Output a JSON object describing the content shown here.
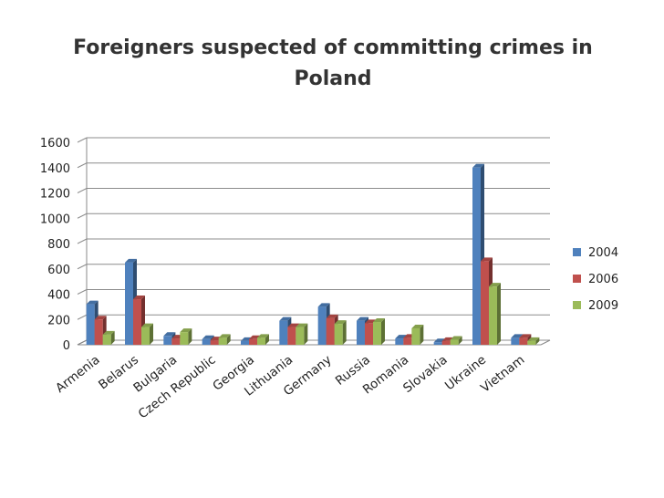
{
  "chart_data": {
    "type": "bar",
    "title": "Foreigners suspected of committing crimes in Poland",
    "categories": [
      "Armenia",
      "Belarus",
      "Bulgaria",
      "Czech Republic",
      "Georgia",
      "Lithuania",
      "Germany",
      "Russia",
      "Romania",
      "Slovakia",
      "Ukraine",
      "Vietnam"
    ],
    "series": [
      {
        "name": "2004",
        "color": "#4F81BD",
        "values": [
          320,
          650,
          70,
          45,
          30,
          190,
          300,
          190,
          50,
          20,
          1400,
          55
        ]
      },
      {
        "name": "2006",
        "color": "#C0504D",
        "values": [
          200,
          360,
          50,
          35,
          45,
          140,
          210,
          170,
          55,
          30,
          660,
          55
        ]
      },
      {
        "name": "2009",
        "color": "#9BBB59",
        "values": [
          80,
          140,
          100,
          55,
          55,
          140,
          165,
          180,
          130,
          40,
          460,
          30
        ]
      }
    ],
    "yticks": [
      "0",
      "200",
      "400",
      "600",
      "800",
      "1000",
      "1200",
      "1400",
      "1600"
    ],
    "ylim": [
      0,
      1600
    ],
    "grid": true,
    "legend": "right"
  }
}
